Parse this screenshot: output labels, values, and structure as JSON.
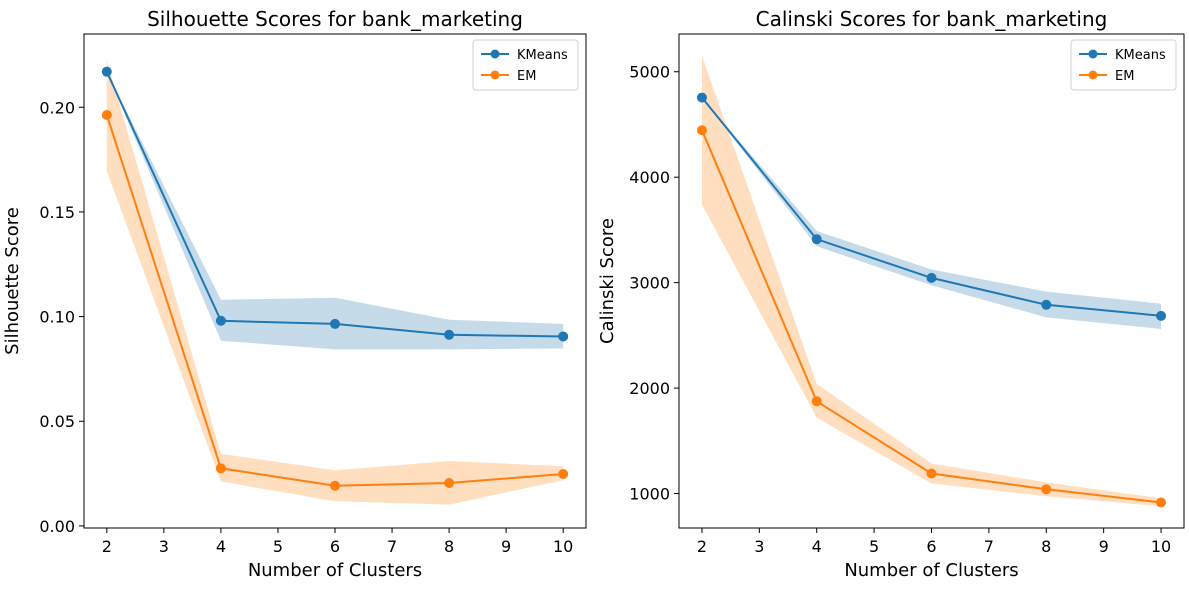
{
  "chart_data": [
    {
      "type": "line",
      "title": "Silhouette Scores for bank_marketing",
      "xlabel": "Number of Clusters",
      "ylabel": "Silhouette Score",
      "x": [
        2,
        4,
        6,
        8,
        10
      ],
      "xlim": [
        1.6,
        10.4
      ],
      "ylim": [
        -0.001,
        0.235
      ],
      "xticks": [
        "2",
        "3",
        "4",
        "5",
        "6",
        "7",
        "8",
        "9",
        "10"
      ],
      "xtick_values": [
        2,
        3,
        4,
        5,
        6,
        7,
        8,
        9,
        10
      ],
      "yticks": [
        "0.00",
        "0.05",
        "0.10",
        "0.15",
        "0.20"
      ],
      "ytick_values": [
        0,
        0.05,
        0.1,
        0.15,
        0.2
      ],
      "grid": false,
      "legend_position": "top-right",
      "series": [
        {
          "name": "KMeans",
          "color": "#1f77b4",
          "band_color": "#c6dbea",
          "values": [
            0.217,
            0.098,
            0.0965,
            0.0913,
            0.0905
          ],
          "lower": [
            0.217,
            0.0885,
            0.0843,
            0.0843,
            0.0848
          ],
          "upper": [
            0.217,
            0.108,
            0.109,
            0.0985,
            0.0965
          ]
        },
        {
          "name": "EM",
          "color": "#ff7f0e",
          "band_color": "#ffdfc0",
          "values": [
            0.1963,
            0.0275,
            0.0192,
            0.0205,
            0.0248
          ],
          "lower": [
            0.1695,
            0.0212,
            0.0118,
            0.0102,
            0.0218
          ],
          "upper": [
            0.2225,
            0.0345,
            0.0265,
            0.031,
            0.0285
          ]
        }
      ]
    },
    {
      "type": "line",
      "title": "Calinski Scores for bank_marketing",
      "xlabel": "Number of Clusters",
      "ylabel": "Calinski Score",
      "x": [
        2,
        4,
        6,
        8,
        10
      ],
      "xlim": [
        1.6,
        10.4
      ],
      "ylim": [
        673,
        5358
      ],
      "xticks": [
        "2",
        "3",
        "4",
        "5",
        "6",
        "7",
        "8",
        "9",
        "10"
      ],
      "xtick_values": [
        2,
        3,
        4,
        5,
        6,
        7,
        8,
        9,
        10
      ],
      "yticks": [
        "1000",
        "2000",
        "3000",
        "4000",
        "5000"
      ],
      "ytick_values": [
        1000,
        2000,
        3000,
        4000,
        5000
      ],
      "grid": false,
      "legend_position": "top-right",
      "series": [
        {
          "name": "KMeans",
          "color": "#1f77b4",
          "band_color": "#c6dbea",
          "values": [
            4755,
            3412,
            3045,
            2790,
            2685
          ],
          "lower": [
            4755,
            3345,
            2975,
            2670,
            2560
          ],
          "upper": [
            4755,
            3490,
            3125,
            2915,
            2800
          ]
        },
        {
          "name": "EM",
          "color": "#ff7f0e",
          "band_color": "#ffdfc0",
          "values": [
            4445,
            1875,
            1190,
            1040,
            915
          ],
          "lower": [
            3740,
            1720,
            1095,
            975,
            880
          ],
          "upper": [
            5150,
            2040,
            1285,
            1105,
            955
          ]
        }
      ]
    }
  ]
}
